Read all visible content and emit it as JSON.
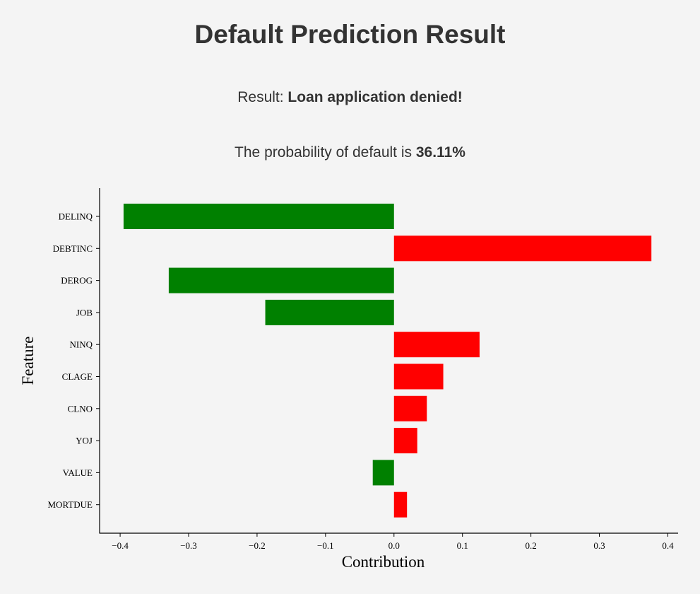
{
  "header": {
    "title": "Default Prediction Result",
    "result_prefix": "Result: ",
    "result_value": "Loan application denied!",
    "prob_prefix": "The probability of default is ",
    "prob_value": "36.11%"
  },
  "chart_data": {
    "type": "bar",
    "orientation": "horizontal",
    "title": "",
    "xlabel": "Contribution",
    "ylabel": "Feature",
    "xlim": [
      -0.43,
      0.415
    ],
    "xticks": [
      -0.4,
      -0.3,
      -0.2,
      -0.1,
      0.0,
      0.1,
      0.2,
      0.3,
      0.4
    ],
    "xtick_labels": [
      "−0.4",
      "−0.3",
      "−0.2",
      "−0.1",
      "0.0",
      "0.1",
      "0.2",
      "0.3",
      "0.4"
    ],
    "categories": [
      "DELINQ",
      "DEBTINC",
      "DEROG",
      "JOB",
      "NINQ",
      "CLAGE",
      "CLNO",
      "YOJ",
      "VALUE",
      "MORTDUE"
    ],
    "values": [
      -0.395,
      0.376,
      -0.329,
      -0.188,
      0.125,
      0.072,
      0.048,
      0.034,
      -0.031,
      0.019
    ],
    "positive_color": "#ff0000",
    "negative_color": "#008000",
    "grid": false,
    "spines": [
      "left",
      "bottom"
    ]
  }
}
